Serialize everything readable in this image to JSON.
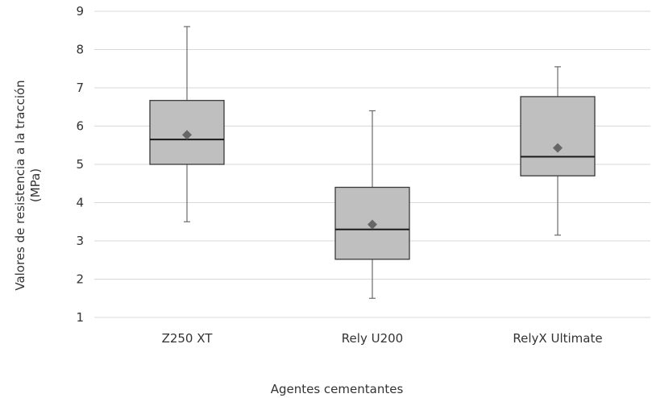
{
  "chart_data": {
    "type": "box",
    "xlabel": "Agentes cementantes",
    "ylabel_lines": [
      "Valores de resistencia a la tracción",
      "(MPa)"
    ],
    "ylim": [
      1,
      9
    ],
    "yticks": [
      1,
      2,
      3,
      4,
      5,
      6,
      7,
      8,
      9
    ],
    "grid": true,
    "mean_marker": "diamond",
    "colors": {
      "box_fill": "#bfbfbf",
      "mean": "#666666",
      "grid": "#d9d9d9"
    },
    "categories": [
      "Z250 XT",
      "Rely U200",
      "RelyX Ultimate"
    ],
    "series": [
      {
        "category": "Z250 XT",
        "min": 3.5,
        "q1": 5.0,
        "median": 5.65,
        "q3": 6.67,
        "max": 8.6,
        "mean": 5.77
      },
      {
        "category": "Rely U200",
        "min": 1.5,
        "q1": 2.52,
        "median": 3.3,
        "q3": 4.4,
        "max": 6.4,
        "mean": 3.43
      },
      {
        "category": "RelyX Ultimate",
        "min": 3.15,
        "q1": 4.7,
        "median": 5.2,
        "q3": 6.77,
        "max": 7.55,
        "mean": 5.43
      }
    ]
  }
}
